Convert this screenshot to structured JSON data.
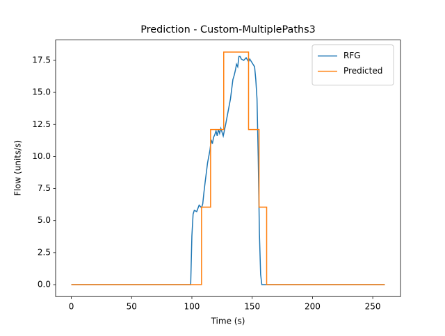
{
  "chart_data": {
    "type": "line",
    "title": "Prediction - Custom-MultiplePaths3",
    "x_label": "Time (s)",
    "y_label": "Flow (units/s)",
    "xlim": [
      -13,
      273
    ],
    "ylim": [
      -0.93,
      19.09
    ],
    "xticks": [
      0,
      50,
      100,
      150,
      200,
      250
    ],
    "yticks": [
      {
        "value": 0,
        "label": "0.0"
      },
      2.5,
      {
        "value": 5,
        "label": "5.0"
      },
      7.5,
      {
        "value": 10,
        "label": "10.0"
      },
      12.5,
      {
        "value": 15,
        "label": "15.0"
      },
      17.5
    ],
    "legend": "upper right",
    "series": [
      {
        "name": "RFG",
        "color": "#1f77b4",
        "x": [
          0,
          99,
          100,
          101,
          102,
          104,
          106,
          107,
          108,
          109,
          110,
          111,
          113,
          115,
          116,
          117,
          118,
          119,
          120,
          121,
          122,
          123,
          124,
          125,
          126,
          128,
          130,
          132,
          134,
          135,
          136,
          137,
          138,
          139,
          140,
          141,
          143,
          145,
          147,
          148,
          150,
          152,
          153,
          154,
          155,
          156,
          157,
          158,
          260
        ],
        "values": [
          0,
          0,
          3.8,
          5.5,
          5.8,
          5.7,
          6.2,
          6.1,
          6.0,
          6.3,
          7.2,
          8.0,
          9.5,
          10.5,
          11.3,
          11.0,
          11.5,
          11.7,
          12.0,
          11.6,
          12.1,
          11.8,
          12.2,
          11.9,
          11.6,
          12.5,
          13.5,
          14.5,
          16.0,
          16.3,
          16.7,
          17.2,
          17.0,
          17.8,
          17.8,
          17.6,
          17.5,
          17.7,
          17.4,
          17.6,
          17.3,
          17.0,
          16.0,
          14.5,
          10.0,
          4.0,
          0.8,
          0,
          0
        ]
      },
      {
        "name": "Predicted",
        "color": "#ff7f0e",
        "x": [
          0,
          108,
          108,
          115.5,
          115.5,
          126.4,
          126.4,
          147,
          147,
          155.7,
          155.7,
          162,
          162,
          260
        ],
        "values": [
          0,
          0,
          6.05,
          6.05,
          12.1,
          12.1,
          18.15,
          18.15,
          12.1,
          12.1,
          6.05,
          6.05,
          0,
          0
        ]
      }
    ]
  }
}
